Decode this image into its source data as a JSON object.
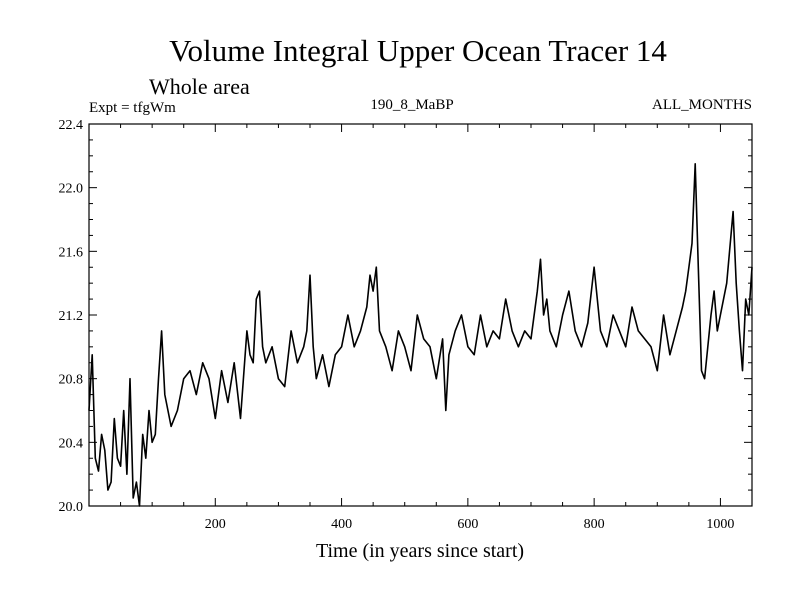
{
  "chart_data": {
    "type": "line",
    "title": "Volume Integral Upper Ocean Tracer 14",
    "subtitle": "Whole area",
    "expt_label": "Expt = tfgWm",
    "run_label": "190_8_MaBP",
    "months_label": "ALL_MONTHS",
    "xlabel": "Time (in years since start)",
    "ylabel": "",
    "xlim": [
      0,
      1050
    ],
    "ylim": [
      20.0,
      22.4
    ],
    "xticks": [
      200,
      400,
      600,
      800,
      1000
    ],
    "yticks": [
      "20.0",
      "20.4",
      "20.8",
      "21.2",
      "21.6",
      "22.0",
      "22.4"
    ],
    "line_color": "#000000",
    "series": [
      {
        "name": "Upper Ocean Tracer 14",
        "x": [
          0,
          5,
          10,
          15,
          20,
          25,
          30,
          35,
          40,
          45,
          50,
          55,
          60,
          65,
          70,
          75,
          80,
          85,
          90,
          95,
          100,
          105,
          110,
          115,
          120,
          130,
          140,
          150,
          160,
          170,
          180,
          190,
          200,
          210,
          220,
          230,
          240,
          250,
          255,
          260,
          265,
          270,
          275,
          280,
          290,
          300,
          310,
          320,
          330,
          340,
          345,
          350,
          355,
          360,
          370,
          380,
          390,
          400,
          410,
          420,
          430,
          440,
          445,
          450,
          455,
          460,
          470,
          480,
          490,
          500,
          510,
          520,
          530,
          540,
          550,
          560,
          565,
          570,
          580,
          590,
          600,
          610,
          620,
          630,
          640,
          650,
          660,
          670,
          680,
          690,
          700,
          710,
          715,
          720,
          725,
          730,
          740,
          750,
          760,
          770,
          780,
          790,
          800,
          810,
          820,
          830,
          840,
          850,
          860,
          870,
          880,
          890,
          900,
          910,
          920,
          930,
          940,
          945,
          950,
          955,
          960,
          965,
          970,
          975,
          980,
          985,
          990,
          995,
          1000,
          1010,
          1020,
          1025,
          1030,
          1035,
          1040,
          1045,
          1050
        ],
        "values": [
          20.6,
          20.95,
          20.3,
          20.22,
          20.45,
          20.35,
          20.1,
          20.15,
          20.55,
          20.3,
          20.25,
          20.6,
          20.2,
          20.8,
          20.05,
          20.15,
          20.0,
          20.45,
          20.3,
          20.6,
          20.4,
          20.45,
          20.8,
          21.1,
          20.7,
          20.5,
          20.6,
          20.8,
          20.85,
          20.7,
          20.9,
          20.8,
          20.55,
          20.85,
          20.65,
          20.9,
          20.55,
          21.1,
          20.95,
          20.9,
          21.3,
          21.35,
          21.0,
          20.9,
          21.0,
          20.8,
          20.75,
          21.1,
          20.9,
          21.0,
          21.1,
          21.45,
          21.0,
          20.8,
          20.95,
          20.75,
          20.95,
          21.0,
          21.2,
          21.0,
          21.1,
          21.25,
          21.45,
          21.35,
          21.5,
          21.1,
          21.0,
          20.85,
          21.1,
          21.0,
          20.85,
          21.2,
          21.05,
          21.0,
          20.8,
          21.05,
          20.6,
          20.95,
          21.1,
          21.2,
          21.0,
          20.95,
          21.2,
          21.0,
          21.1,
          21.05,
          21.3,
          21.1,
          21.0,
          21.1,
          21.05,
          21.35,
          21.55,
          21.2,
          21.3,
          21.1,
          21.0,
          21.2,
          21.35,
          21.1,
          21.0,
          21.15,
          21.5,
          21.1,
          21.0,
          21.2,
          21.1,
          21.0,
          21.25,
          21.1,
          21.05,
          21.0,
          20.85,
          21.2,
          20.95,
          21.1,
          21.25,
          21.35,
          21.5,
          21.65,
          22.15,
          21.5,
          20.85,
          20.8,
          21.0,
          21.2,
          21.35,
          21.1,
          21.2,
          21.4,
          21.85,
          21.4,
          21.1,
          20.85,
          21.3,
          21.2,
          21.5
        ]
      }
    ]
  }
}
